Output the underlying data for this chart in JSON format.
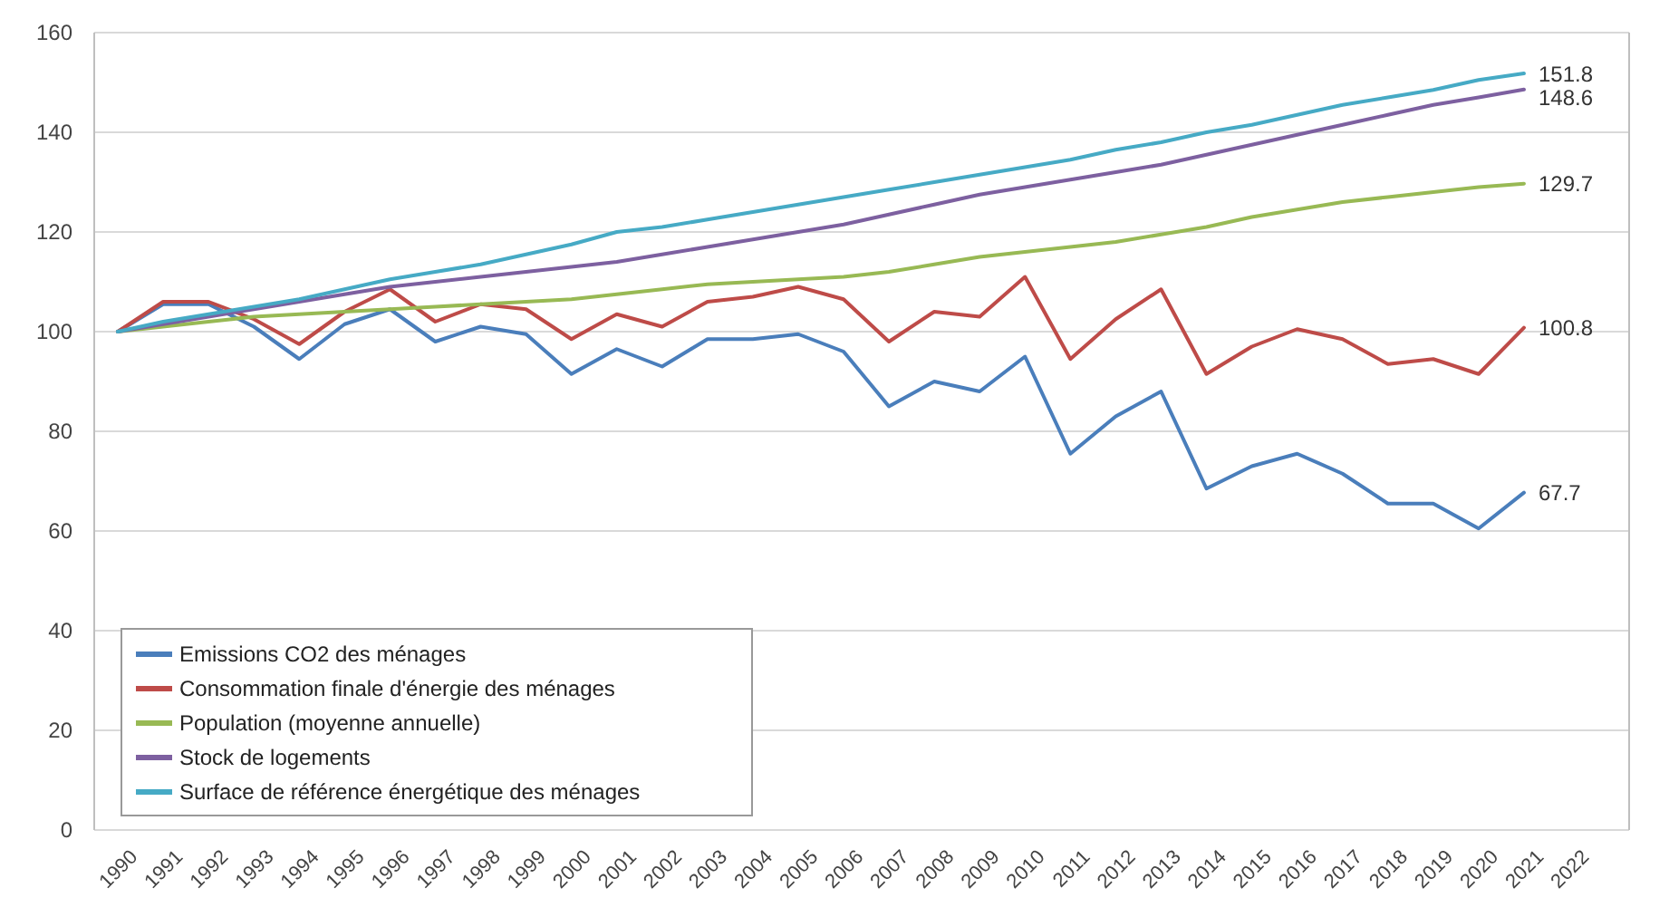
{
  "chart_data": {
    "type": "line",
    "categories": [
      "1990",
      "1991",
      "1992",
      "1993",
      "1994",
      "1995",
      "1996",
      "1997",
      "1998",
      "1999",
      "2000",
      "2001",
      "2002",
      "2003",
      "2004",
      "2005",
      "2006",
      "2007",
      "2008",
      "2009",
      "2010",
      "2011",
      "2012",
      "2013",
      "2014",
      "2015",
      "2016",
      "2017",
      "2018",
      "2019",
      "2020",
      "2021",
      "2022"
    ],
    "ylim": [
      0,
      160
    ],
    "yticks": [
      0,
      20,
      40,
      60,
      80,
      100,
      120,
      140,
      160
    ],
    "grid": "y",
    "legend": "bottom left",
    "marker": "none",
    "line_style": "solid",
    "series": [
      {
        "name": "Emissions CO2 des ménages",
        "color": "#4a7ebb",
        "values": [
          100,
          105.5,
          105.5,
          101,
          94.5,
          101.5,
          104.5,
          98,
          101,
          99.5,
          91.5,
          96.5,
          93,
          98.5,
          98.5,
          99.5,
          96,
          85,
          90,
          88,
          95,
          75.5,
          83,
          88,
          68.5,
          73,
          75.5,
          71.5,
          65.5,
          65.5,
          60.5,
          67.7,
          null
        ],
        "value_labels": [
          null,
          null,
          null,
          null,
          null,
          null,
          null,
          null,
          null,
          null,
          null,
          null,
          null,
          null,
          null,
          null,
          null,
          null,
          null,
          null,
          null,
          null,
          null,
          null,
          null,
          null,
          null,
          null,
          null,
          null,
          null,
          "67.7",
          null
        ]
      },
      {
        "name": "Consommation finale d'énergie des ménages",
        "color": "#be4b48",
        "values": [
          100,
          106,
          106,
          102.5,
          97.5,
          104,
          108.5,
          102,
          105.5,
          104.5,
          98.5,
          103.5,
          101,
          106,
          107,
          109,
          106.5,
          98,
          104,
          103,
          111,
          94.5,
          102.5,
          108.5,
          91.5,
          97,
          100.5,
          98.5,
          93.5,
          94.5,
          91.5,
          100.8,
          null
        ],
        "value_labels": [
          null,
          null,
          null,
          null,
          null,
          null,
          null,
          null,
          null,
          null,
          null,
          null,
          null,
          null,
          null,
          null,
          null,
          null,
          null,
          null,
          null,
          null,
          null,
          null,
          null,
          null,
          null,
          null,
          null,
          null,
          null,
          "100.8",
          null
        ]
      },
      {
        "name": "Population (moyenne annuelle)",
        "color": "#98b954",
        "values": [
          100,
          101,
          102,
          103,
          103.5,
          104,
          104.5,
          105,
          105.5,
          106,
          106.5,
          107.5,
          108.5,
          109.5,
          110,
          110.5,
          111,
          112,
          113.5,
          115,
          116,
          117,
          118,
          119.5,
          121,
          123,
          124.5,
          126,
          127,
          128,
          129,
          129.7,
          null
        ],
        "value_labels": [
          null,
          null,
          null,
          null,
          null,
          null,
          null,
          null,
          null,
          null,
          null,
          null,
          null,
          null,
          null,
          null,
          null,
          null,
          null,
          null,
          null,
          null,
          null,
          null,
          null,
          null,
          null,
          null,
          null,
          null,
          null,
          "129.7",
          null
        ]
      },
      {
        "name": "Stock de logements",
        "color": "#7d60a0",
        "values": [
          100,
          101.5,
          103,
          104.5,
          106,
          107.5,
          109,
          110,
          111,
          112,
          113,
          114,
          115.5,
          117,
          118.5,
          120,
          121.5,
          123.5,
          125.5,
          127.5,
          129,
          130.5,
          132,
          133.5,
          135.5,
          137.5,
          139.5,
          141.5,
          143.5,
          145.5,
          147,
          148.6,
          null
        ],
        "value_labels": [
          null,
          null,
          null,
          null,
          null,
          null,
          null,
          null,
          null,
          null,
          null,
          null,
          null,
          null,
          null,
          null,
          null,
          null,
          null,
          null,
          null,
          null,
          null,
          null,
          null,
          null,
          null,
          null,
          null,
          null,
          null,
          "148.6",
          null
        ]
      },
      {
        "name": "Surface de référence énergétique des ménages",
        "color": "#46aac5",
        "values": [
          100,
          102,
          103.5,
          105,
          106.5,
          108.5,
          110.5,
          112,
          113.5,
          115.5,
          117.5,
          120,
          121,
          122.5,
          124,
          125.5,
          127,
          128.5,
          130,
          131.5,
          133,
          134.5,
          136.5,
          138,
          140,
          141.5,
          143.5,
          145.5,
          147,
          148.5,
          150.5,
          151.8,
          null
        ],
        "value_labels": [
          null,
          null,
          null,
          null,
          null,
          null,
          null,
          null,
          null,
          null,
          null,
          null,
          null,
          null,
          null,
          null,
          null,
          null,
          null,
          null,
          null,
          null,
          null,
          null,
          null,
          null,
          null,
          null,
          null,
          null,
          null,
          "151.8",
          null
        ]
      }
    ]
  }
}
